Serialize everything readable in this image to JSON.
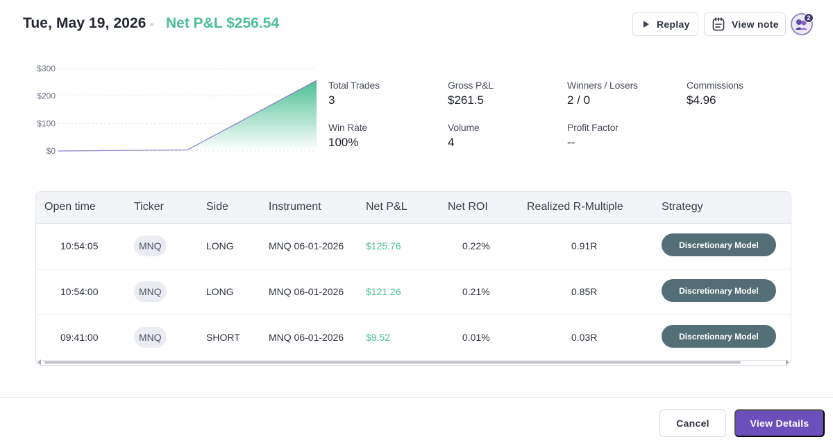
{
  "header": {
    "date": "Tue, May 19, 2026",
    "net_pl": "Net P&L $256.54",
    "replay_label": "Replay",
    "view_note_label": "View note",
    "avatar_badge": "2"
  },
  "chart_data": {
    "type": "area",
    "x": [
      0,
      1,
      2
    ],
    "values": [
      0,
      4.0,
      256.54
    ],
    "y_ticks": [
      "$0",
      "$100",
      "$200",
      "$300"
    ],
    "ylim": [
      0,
      300
    ],
    "grid": true,
    "title": "",
    "xlabel": "",
    "ylabel": "",
    "colors": {
      "line": "#8a7fc8",
      "fill": "#4cbf94"
    }
  },
  "stats": [
    {
      "label": "Total Trades",
      "value": "3"
    },
    {
      "label": "Gross P&L",
      "value": "$261.5"
    },
    {
      "label": "Winners / Losers",
      "value": "2 / 0"
    },
    {
      "label": "Commissions",
      "value": "$4.96"
    },
    {
      "label": "Win Rate",
      "value": "100%"
    },
    {
      "label": "Volume",
      "value": "4"
    },
    {
      "label": "Profit Factor",
      "value": "--"
    }
  ],
  "table": {
    "columns": [
      "Open time",
      "Ticker",
      "Side",
      "Instrument",
      "Net P&L",
      "Net ROI",
      "Realized R-Multiple",
      "Strategy"
    ],
    "rows": [
      {
        "open_time": "10:54:05",
        "ticker": "MNQ",
        "side": "LONG",
        "instrument": "MNQ 06-01-2026",
        "net_pl": "$125.76",
        "net_roi": "0.22%",
        "r_multiple": "0.91R",
        "strategy": "Discretionary Model"
      },
      {
        "open_time": "10:54:00",
        "ticker": "MNQ",
        "side": "LONG",
        "instrument": "MNQ 06-01-2026",
        "net_pl": "$121.26",
        "net_roi": "0.21%",
        "r_multiple": "0.85R",
        "strategy": "Discretionary Model"
      },
      {
        "open_time": "09:41:00",
        "ticker": "MNQ",
        "side": "SHORT",
        "instrument": "MNQ 06-01-2026",
        "net_pl": "$9.52",
        "net_roi": "0.01%",
        "r_multiple": "0.03R",
        "strategy": "Discretionary Model"
      }
    ]
  },
  "footer": {
    "cancel_label": "Cancel",
    "details_label": "View Details"
  },
  "colors": {
    "accent": "#6b4fbb",
    "positive": "#4cbf94",
    "strategy_pill": "#546e78"
  }
}
